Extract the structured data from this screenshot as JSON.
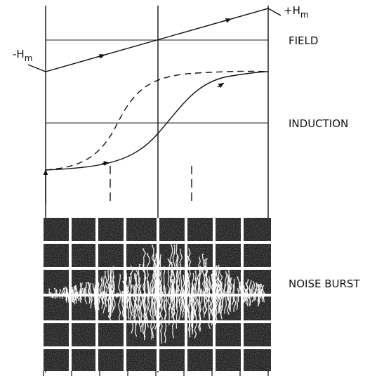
{
  "field_limits": {
    "positive": {
      "symbol": "+H",
      "subscript": "m"
    },
    "negative": {
      "symbol": "-H",
      "subscript": "m"
    }
  },
  "traces": [
    {
      "label": "FIELD"
    },
    {
      "label": "INDUCTION"
    },
    {
      "label": "NOISE BURST"
    }
  ]
}
